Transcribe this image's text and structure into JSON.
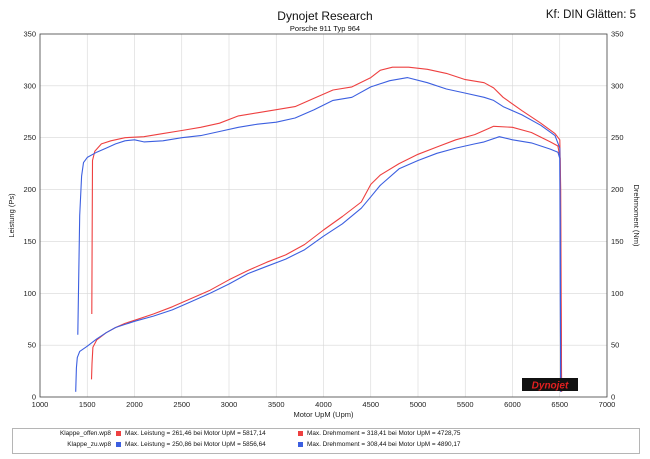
{
  "header": {
    "title": "Dynojet Research",
    "subtitle": "Porsche 911 Typ 964",
    "correction": "Kf: DIN Glätten: 5"
  },
  "colors": {
    "offen": "#ee4040",
    "zu": "#3c5fe0",
    "grid": "#d7d7d7",
    "axis": "#444444"
  },
  "logo": {
    "text": "Dynojet",
    "icon": "dynojet-logo"
  },
  "legend": {
    "rows": [
      {
        "file": "Klappe_offen.wp8",
        "power": "Max. Leistung = 261,46 bei Motor UpM = 5817,14",
        "torque": "Max. Drehmoment = 318,41 bei Motor UpM = 4728,75"
      },
      {
        "file": "Klappe_zu.wp8",
        "power": "Max. Leistung = 250,86 bei Motor UpM = 5856,64",
        "torque": "Max. Drehmoment = 308,44 bei Motor UpM = 4890,17"
      }
    ]
  },
  "chart_data": {
    "type": "line",
    "title": "Dynojet Research",
    "xlabel": "Motor UpM (Upm)",
    "ylabel_left": "Leistung (Ps)",
    "ylabel_right": "Drehmoment (Nm)",
    "xlim": [
      1000,
      7000
    ],
    "ylim": [
      0,
      350
    ],
    "xticks": [
      1000,
      1500,
      2000,
      2500,
      3000,
      3500,
      4000,
      4500,
      5000,
      5500,
      6000,
      6500,
      7000
    ],
    "yticks": [
      0,
      50,
      100,
      150,
      200,
      250,
      300,
      350
    ],
    "grid": true,
    "series": [
      {
        "name": "Klappe_offen.wp8",
        "quantity": "Leistung",
        "color": "#ee4040",
        "points": [
          [
            1545,
            17
          ],
          [
            1550,
            32
          ],
          [
            1560,
            48
          ],
          [
            1600,
            55
          ],
          [
            1700,
            62
          ],
          [
            1800,
            67
          ],
          [
            1900,
            71
          ],
          [
            2000,
            74
          ],
          [
            2200,
            80
          ],
          [
            2400,
            87
          ],
          [
            2600,
            95
          ],
          [
            2800,
            103
          ],
          [
            3000,
            113
          ],
          [
            3200,
            122
          ],
          [
            3400,
            130
          ],
          [
            3600,
            137
          ],
          [
            3800,
            147
          ],
          [
            4000,
            161
          ],
          [
            4200,
            174
          ],
          [
            4400,
            188
          ],
          [
            4500,
            205
          ],
          [
            4600,
            214
          ],
          [
            4800,
            225
          ],
          [
            5000,
            234
          ],
          [
            5200,
            241
          ],
          [
            5400,
            248
          ],
          [
            5600,
            253
          ],
          [
            5700,
            257
          ],
          [
            5800,
            261
          ],
          [
            6000,
            260
          ],
          [
            6200,
            255
          ],
          [
            6400,
            246
          ],
          [
            6480,
            242
          ],
          [
            6505,
            230
          ],
          [
            6510,
            130
          ],
          [
            6520,
            5
          ]
        ]
      },
      {
        "name": "Klappe_offen.wp8",
        "quantity": "Drehmoment",
        "color": "#ee4040",
        "points": [
          [
            1548,
            80
          ],
          [
            1552,
            165
          ],
          [
            1556,
            228
          ],
          [
            1580,
            237
          ],
          [
            1650,
            244
          ],
          [
            1750,
            247
          ],
          [
            1900,
            250
          ],
          [
            2100,
            251
          ],
          [
            2300,
            254
          ],
          [
            2500,
            257
          ],
          [
            2700,
            260
          ],
          [
            2900,
            264
          ],
          [
            3100,
            271
          ],
          [
            3300,
            274
          ],
          [
            3500,
            277
          ],
          [
            3700,
            280
          ],
          [
            3900,
            288
          ],
          [
            4100,
            296
          ],
          [
            4300,
            299
          ],
          [
            4500,
            308
          ],
          [
            4600,
            315
          ],
          [
            4730,
            318
          ],
          [
            4900,
            318
          ],
          [
            5100,
            316
          ],
          [
            5300,
            312
          ],
          [
            5500,
            306
          ],
          [
            5700,
            303
          ],
          [
            5800,
            298
          ],
          [
            5900,
            289
          ],
          [
            6100,
            276
          ],
          [
            6300,
            264
          ],
          [
            6450,
            254
          ],
          [
            6500,
            248
          ],
          [
            6510,
            200
          ],
          [
            6520,
            5
          ]
        ]
      },
      {
        "name": "Klappe_zu.wp8",
        "quantity": "Leistung",
        "color": "#3c5fe0",
        "points": [
          [
            1378,
            5
          ],
          [
            1385,
            28
          ],
          [
            1395,
            38
          ],
          [
            1420,
            44
          ],
          [
            1500,
            49
          ],
          [
            1600,
            56
          ],
          [
            1700,
            62
          ],
          [
            1800,
            67
          ],
          [
            1900,
            70
          ],
          [
            2000,
            73
          ],
          [
            2200,
            78
          ],
          [
            2400,
            84
          ],
          [
            2600,
            92
          ],
          [
            2800,
            100
          ],
          [
            3000,
            109
          ],
          [
            3200,
            119
          ],
          [
            3400,
            126
          ],
          [
            3600,
            133
          ],
          [
            3800,
            142
          ],
          [
            4000,
            155
          ],
          [
            4200,
            167
          ],
          [
            4400,
            182
          ],
          [
            4500,
            193
          ],
          [
            4600,
            204
          ],
          [
            4800,
            220
          ],
          [
            5000,
            228
          ],
          [
            5200,
            235
          ],
          [
            5400,
            240
          ],
          [
            5600,
            244
          ],
          [
            5700,
            246
          ],
          [
            5860,
            251
          ],
          [
            6000,
            248
          ],
          [
            6200,
            245
          ],
          [
            6400,
            239
          ],
          [
            6480,
            236
          ],
          [
            6500,
            230
          ],
          [
            6505,
            130
          ],
          [
            6510,
            5
          ]
        ]
      },
      {
        "name": "Klappe_zu.wp8",
        "quantity": "Drehmoment",
        "color": "#3c5fe0",
        "points": [
          [
            1400,
            60
          ],
          [
            1420,
            175
          ],
          [
            1440,
            213
          ],
          [
            1460,
            226
          ],
          [
            1500,
            231
          ],
          [
            1600,
            236
          ],
          [
            1700,
            240
          ],
          [
            1800,
            244
          ],
          [
            1900,
            247
          ],
          [
            2000,
            248
          ],
          [
            2100,
            246
          ],
          [
            2300,
            247
          ],
          [
            2500,
            250
          ],
          [
            2700,
            252
          ],
          [
            2900,
            256
          ],
          [
            3100,
            260
          ],
          [
            3300,
            263
          ],
          [
            3500,
            265
          ],
          [
            3700,
            269
          ],
          [
            3900,
            277
          ],
          [
            4100,
            286
          ],
          [
            4300,
            289
          ],
          [
            4500,
            299
          ],
          [
            4700,
            305
          ],
          [
            4890,
            308
          ],
          [
            5100,
            303
          ],
          [
            5300,
            297
          ],
          [
            5500,
            293
          ],
          [
            5700,
            289
          ],
          [
            5800,
            286
          ],
          [
            5900,
            280
          ],
          [
            6100,
            272
          ],
          [
            6300,
            262
          ],
          [
            6450,
            252
          ],
          [
            6500,
            240
          ],
          [
            6505,
            180
          ],
          [
            6510,
            5
          ]
        ]
      }
    ]
  }
}
